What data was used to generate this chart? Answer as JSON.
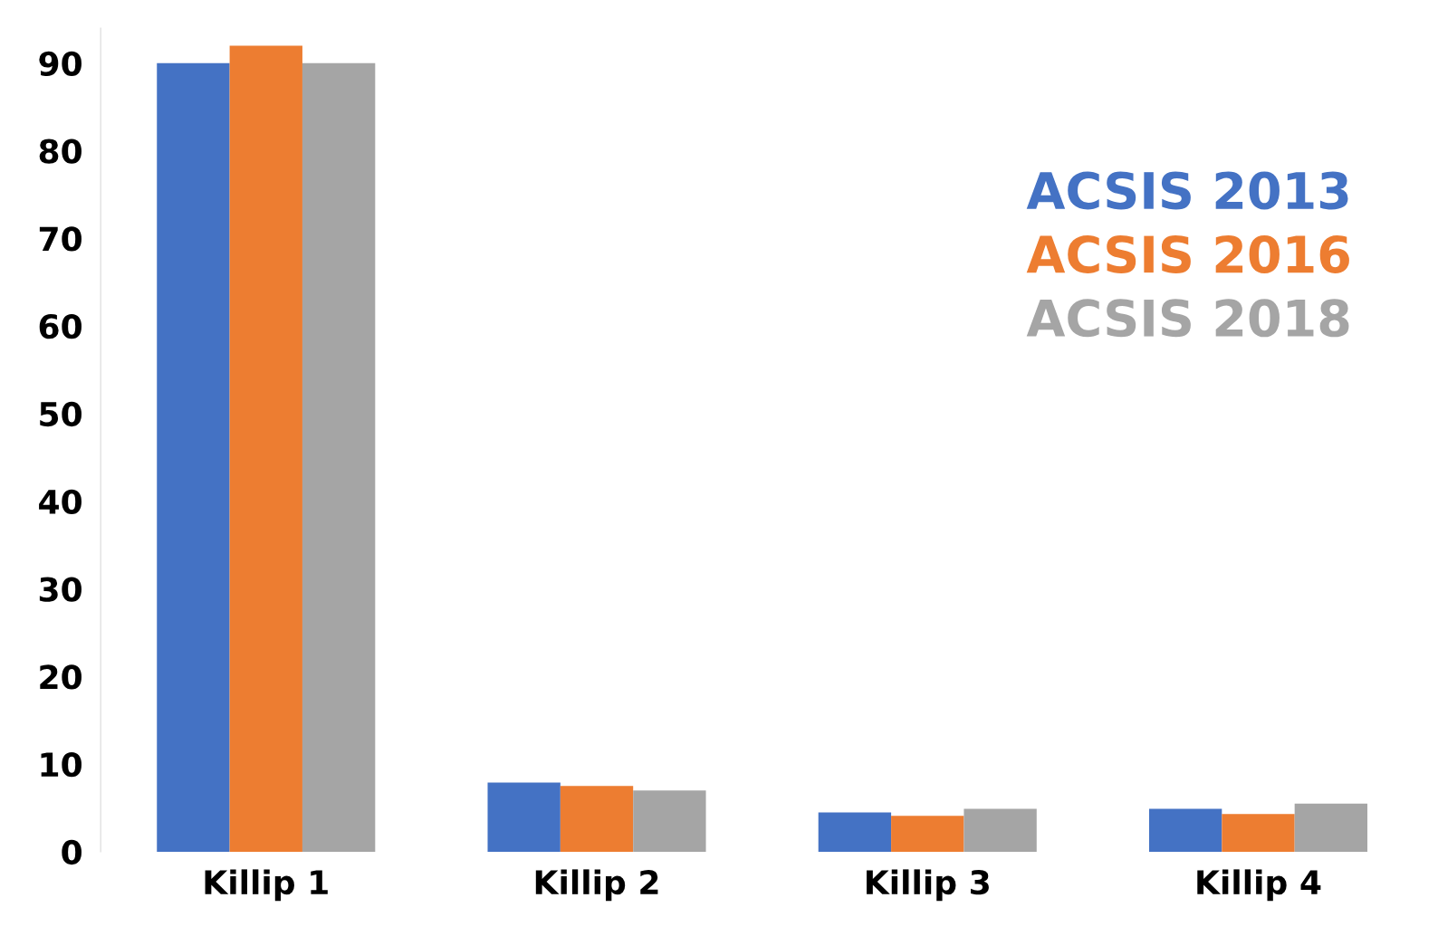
{
  "chart_data": {
    "type": "bar",
    "categories": [
      "Killip 1",
      "Killip 2",
      "Killip 3",
      "Killip 4"
    ],
    "series": [
      {
        "name": "ACSIS 2013",
        "color": "#4472c4",
        "values": [
          90,
          7.9,
          4.5,
          4.9
        ]
      },
      {
        "name": "ACSIS 2016",
        "color": "#ed7d31",
        "values": [
          92,
          7.5,
          4.1,
          4.3
        ]
      },
      {
        "name": "ACSIS 2018",
        "color": "#a5a5a5",
        "values": [
          90,
          7.0,
          4.9,
          5.5
        ]
      }
    ],
    "ylim": [
      0,
      94
    ],
    "yticks": [
      0,
      10,
      20,
      30,
      40,
      50,
      60,
      70,
      80,
      90
    ],
    "grid": false,
    "legend": "right"
  }
}
